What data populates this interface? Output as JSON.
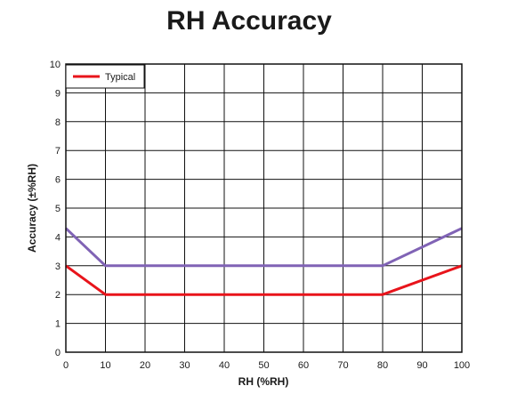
{
  "chart_data": {
    "type": "line",
    "title": "RH Accuracy",
    "xlabel": "RH (%RH)",
    "ylabel": "Accuracy (±%RH)",
    "xlim": [
      0,
      100
    ],
    "ylim": [
      0,
      10
    ],
    "x_ticks": [
      "0",
      "10",
      "20",
      "30",
      "40",
      "50",
      "60",
      "70",
      "80",
      "90",
      "100"
    ],
    "y_ticks": [
      "0",
      "1",
      "2",
      "3",
      "4",
      "5",
      "6",
      "7",
      "8",
      "9",
      "10"
    ],
    "grid": true,
    "legend_position": "top-left",
    "series": [
      {
        "name": "Typical",
        "color": "#e8141b",
        "x": [
          0,
          10,
          80,
          100
        ],
        "y": [
          3,
          2,
          2,
          3
        ]
      },
      {
        "color": "#8063b5",
        "x": [
          0,
          10,
          80,
          100
        ],
        "y": [
          4.3,
          3,
          3,
          4.3
        ]
      }
    ]
  }
}
